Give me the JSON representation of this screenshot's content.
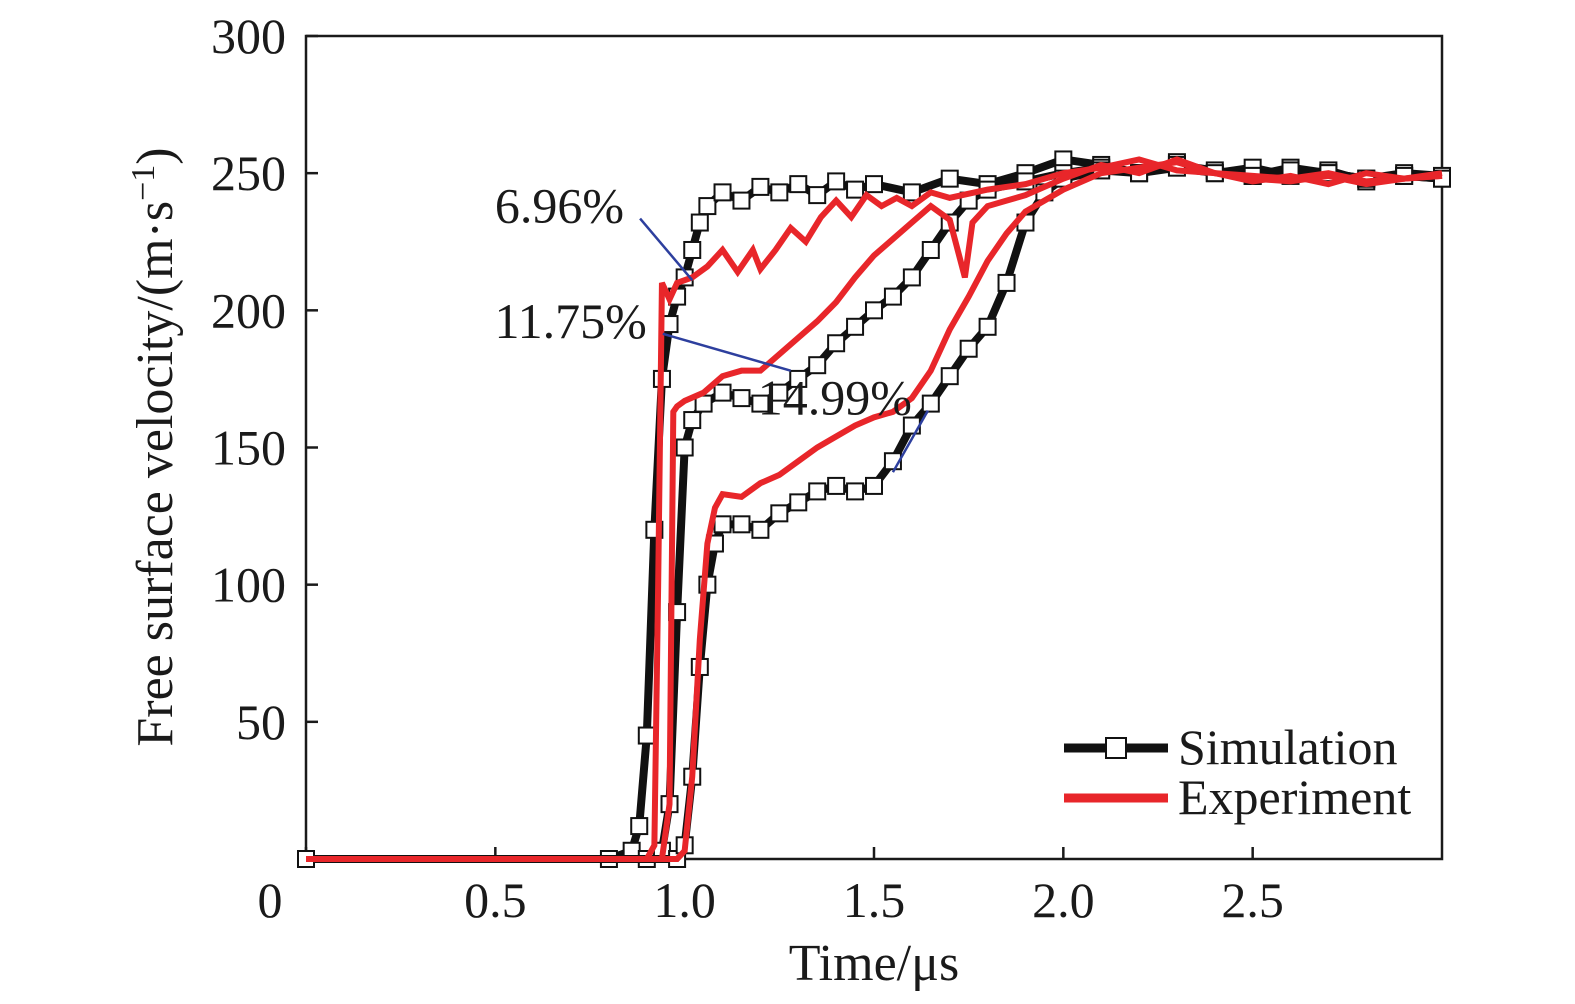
{
  "chart_data": {
    "type": "line",
    "xlabel": "Time/μs",
    "ylabel": "Free surface velocity/(m·s",
    "ylabel_unit_exp": "−1",
    "ylabel_close": ")",
    "xlim": [
      0,
      3.0
    ],
    "ylim": [
      0,
      300
    ],
    "x_ticks": [
      0,
      0.5,
      1.0,
      1.5,
      2.0,
      2.5
    ],
    "x_tick_labels": [
      "0",
      "0.5",
      "1.0",
      "1.5",
      "2.0",
      "2.5"
    ],
    "y_ticks": [
      50,
      100,
      150,
      200,
      250,
      300
    ],
    "y_tick_labels": [
      "50",
      "100",
      "150",
      "200",
      "250",
      "300"
    ],
    "grid": false,
    "legend_position": "bottom-right",
    "legend": [
      {
        "label": "Simulation",
        "color": "#111111",
        "marker": "open-square"
      },
      {
        "label": "Experiment",
        "color": "#e8262a",
        "marker": "none"
      }
    ],
    "annotations": [
      {
        "text": "6.96%",
        "x": 0.84,
        "y": 232,
        "arrow_to": [
          1.02,
          211
        ]
      },
      {
        "text": "11.75%",
        "x": 0.9,
        "y": 190,
        "arrow_to": [
          1.28,
          178
        ]
      },
      {
        "text": "14.99%",
        "x": 1.6,
        "y": 162,
        "arrow_to": [
          1.55,
          141
        ]
      }
    ],
    "series": [
      {
        "kind": "Simulation",
        "curve": "6.96%",
        "color": "#111111",
        "x": [
          0.0,
          0.8,
          0.86,
          0.88,
          0.9,
          0.92,
          0.94,
          0.96,
          0.98,
          1.0,
          1.02,
          1.04,
          1.06,
          1.1,
          1.15,
          1.2,
          1.25,
          1.3,
          1.35,
          1.4,
          1.45,
          1.5,
          1.6,
          1.7,
          1.8,
          1.9,
          2.0,
          2.1,
          2.2,
          2.3,
          2.4,
          2.5,
          2.6,
          2.7,
          2.8,
          2.9,
          3.0
        ],
        "y": [
          0,
          0,
          3,
          12,
          45,
          120,
          175,
          195,
          205,
          212,
          222,
          232,
          238,
          243,
          240,
          245,
          243,
          246,
          242,
          247,
          244,
          246,
          243,
          248,
          246,
          250,
          255,
          253,
          250,
          254,
          250,
          252,
          249,
          251,
          247,
          249,
          248
        ]
      },
      {
        "kind": "Simulation",
        "curve": "11.75%",
        "color": "#111111",
        "x": [
          0.0,
          0.9,
          0.94,
          0.96,
          0.98,
          1.0,
          1.02,
          1.05,
          1.1,
          1.15,
          1.2,
          1.25,
          1.3,
          1.35,
          1.4,
          1.45,
          1.5,
          1.55,
          1.6,
          1.65,
          1.7,
          1.75,
          1.8,
          1.9,
          2.0,
          2.1,
          2.2,
          2.3,
          2.4,
          2.5,
          2.6,
          2.7,
          2.8,
          2.9,
          3.0
        ],
        "y": [
          0,
          0,
          3,
          20,
          90,
          150,
          160,
          166,
          170,
          168,
          166,
          170,
          175,
          180,
          188,
          194,
          200,
          205,
          212,
          222,
          232,
          240,
          244,
          247,
          250,
          252,
          250,
          253,
          251,
          249,
          252,
          250,
          248,
          250,
          249
        ]
      },
      {
        "kind": "Simulation",
        "curve": "14.99%",
        "color": "#111111",
        "x": [
          0.0,
          0.98,
          1.0,
          1.02,
          1.04,
          1.06,
          1.08,
          1.1,
          1.15,
          1.2,
          1.25,
          1.3,
          1.35,
          1.4,
          1.45,
          1.5,
          1.55,
          1.6,
          1.65,
          1.7,
          1.75,
          1.8,
          1.85,
          1.9,
          1.95,
          2.0,
          2.1,
          2.2,
          2.3,
          2.4,
          2.5,
          2.6,
          2.7,
          2.8,
          2.9,
          3.0
        ],
        "y": [
          0,
          0,
          5,
          30,
          70,
          100,
          115,
          122,
          122,
          120,
          126,
          130,
          134,
          136,
          134,
          136,
          145,
          158,
          166,
          176,
          186,
          194,
          210,
          232,
          243,
          248,
          251,
          250,
          252,
          250,
          249,
          251,
          250,
          248,
          249,
          248
        ]
      },
      {
        "kind": "Experiment",
        "curve": "6.96%",
        "color": "#e8262a",
        "x": [
          0.0,
          0.9,
          0.92,
          0.93,
          0.94,
          0.96,
          0.98,
          1.02,
          1.06,
          1.1,
          1.14,
          1.18,
          1.2,
          1.24,
          1.28,
          1.32,
          1.36,
          1.4,
          1.44,
          1.48,
          1.52,
          1.56,
          1.6,
          1.65,
          1.7,
          1.8,
          1.9,
          2.0,
          2.1,
          2.2,
          2.3,
          2.4,
          2.5,
          2.6,
          2.7,
          2.8,
          2.9,
          3.0
        ],
        "y": [
          0,
          0,
          5,
          100,
          210,
          204,
          210,
          212,
          216,
          222,
          214,
          222,
          215,
          222,
          230,
          225,
          234,
          240,
          234,
          242,
          238,
          241,
          238,
          243,
          241,
          244,
          246,
          250,
          252,
          255,
          251,
          250,
          249,
          248,
          250,
          247,
          248,
          249
        ]
      },
      {
        "kind": "Experiment",
        "curve": "11.75%",
        "color": "#e8262a",
        "x": [
          0.0,
          0.94,
          0.96,
          0.97,
          0.98,
          1.0,
          1.05,
          1.1,
          1.15,
          1.2,
          1.25,
          1.3,
          1.35,
          1.4,
          1.45,
          1.5,
          1.55,
          1.6,
          1.65,
          1.7,
          1.74,
          1.76,
          1.8,
          1.85,
          1.9,
          2.0,
          2.1,
          2.2,
          2.3,
          2.4,
          2.5,
          2.6,
          2.7,
          2.8,
          2.9,
          3.0
        ],
        "y": [
          0,
          0,
          20,
          163,
          165,
          167,
          170,
          176,
          178,
          178,
          184,
          190,
          196,
          203,
          212,
          220,
          226,
          232,
          238,
          233,
          212,
          232,
          238,
          240,
          242,
          248,
          253,
          250,
          255,
          250,
          247,
          249,
          246,
          250,
          248,
          249
        ]
      },
      {
        "kind": "Experiment",
        "curve": "14.99%",
        "color": "#e8262a",
        "x": [
          0.0,
          0.98,
          1.0,
          1.02,
          1.04,
          1.06,
          1.08,
          1.1,
          1.15,
          1.2,
          1.25,
          1.3,
          1.35,
          1.4,
          1.45,
          1.5,
          1.55,
          1.6,
          1.65,
          1.7,
          1.75,
          1.8,
          1.85,
          1.9,
          1.95,
          2.0,
          2.1,
          2.2,
          2.3,
          2.4,
          2.5,
          2.6,
          2.7,
          2.8,
          2.9,
          3.0
        ],
        "y": [
          0,
          0,
          3,
          30,
          80,
          115,
          128,
          133,
          132,
          137,
          140,
          145,
          150,
          154,
          158,
          161,
          163,
          168,
          178,
          193,
          205,
          218,
          228,
          236,
          240,
          244,
          250,
          252,
          254,
          250,
          248,
          247,
          249,
          246,
          248,
          250
        ]
      }
    ]
  }
}
